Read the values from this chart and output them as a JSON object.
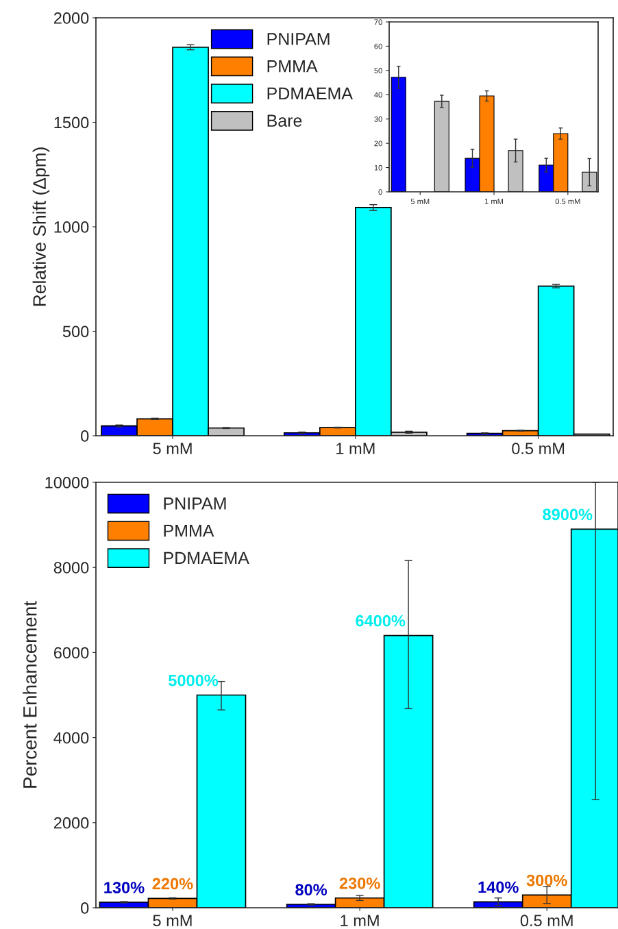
{
  "chart_data": [
    {
      "type": "bar",
      "ylabel": "Relative Shift (Δpm)",
      "categories": [
        "5 mM",
        "1 mM",
        "0.5 mM"
      ],
      "ylim": [
        0,
        2000
      ],
      "yticks": [
        0,
        500,
        1000,
        1500,
        2000
      ],
      "grid": false,
      "legend": "top",
      "series": [
        {
          "name": "PNIPAM",
          "color": "#0000ff",
          "values": [
            47,
            14,
            11
          ],
          "errors": [
            4.5,
            3.7,
            2.8
          ]
        },
        {
          "name": "PMMA",
          "color": "#ff8000",
          "values": [
            81,
            39,
            24
          ],
          "errors": [
            3,
            2,
            2.3
          ]
        },
        {
          "name": "PDMAEMA",
          "color": "#00ffff",
          "values": [
            1859,
            1092,
            716
          ],
          "errors": [
            12,
            14,
            8
          ]
        },
        {
          "name": "Bare",
          "color": "#c0c0c0",
          "values": [
            37,
            17,
            8
          ],
          "errors": [
            2.5,
            4.7,
            null
          ]
        }
      ]
    },
    {
      "type": "bar",
      "categories": [
        "5 mM",
        "1 mM",
        "0.5 mM"
      ],
      "ylim": [
        0,
        70
      ],
      "yticks": [
        0,
        10,
        20,
        30,
        40,
        50,
        60,
        70
      ],
      "grid": false,
      "legend": false,
      "series": [
        {
          "color": "#0000ff",
          "values": [
            47.2,
            13.8,
            11
          ],
          "errors": [
            4.5,
            3.7,
            2.8
          ]
        },
        {
          "color": "#ff8000",
          "values": [
            null,
            39.5,
            24
          ],
          "errors": [
            null,
            2.1,
            2.3
          ]
        },
        {
          "color": "#00ffff",
          "values": [
            null,
            null,
            null
          ],
          "errors": [
            null,
            null,
            null
          ]
        },
        {
          "color": "#c0c0c0",
          "values": [
            37.3,
            17,
            8.1
          ],
          "errors": [
            2.5,
            4.7,
            5.6
          ]
        }
      ]
    },
    {
      "type": "bar",
      "ylabel": "Percent Enhancement",
      "categories": [
        "5 mM",
        "1 mM",
        "0.5 mM"
      ],
      "ylim": [
        0,
        10000
      ],
      "yticks": [
        0,
        2000,
        4000,
        6000,
        8000,
        10000
      ],
      "grid": false,
      "legend": "top left",
      "series": [
        {
          "name": "PNIPAM",
          "color": "#0000ff",
          "values": [
            130,
            80,
            140
          ],
          "errors": [
            15,
            15,
            90
          ],
          "value_labels": [
            "130%",
            "80%",
            "140%"
          ]
        },
        {
          "name": "PMMA",
          "color": "#ff8000",
          "values": [
            220,
            230,
            300
          ],
          "errors": [
            15,
            60,
            200
          ],
          "value_labels": [
            "220%",
            "230%",
            "300%"
          ]
        },
        {
          "name": "PDMAEMA",
          "color": "#00ffff",
          "values": [
            5000,
            6400,
            8900
          ],
          "errors": [
            [
              4650,
              5320
            ],
            [
              4680,
              8160
            ],
            [
              2540,
              10000
            ]
          ],
          "value_labels": [
            "5000%",
            "6400%",
            "8900%"
          ]
        }
      ]
    }
  ]
}
